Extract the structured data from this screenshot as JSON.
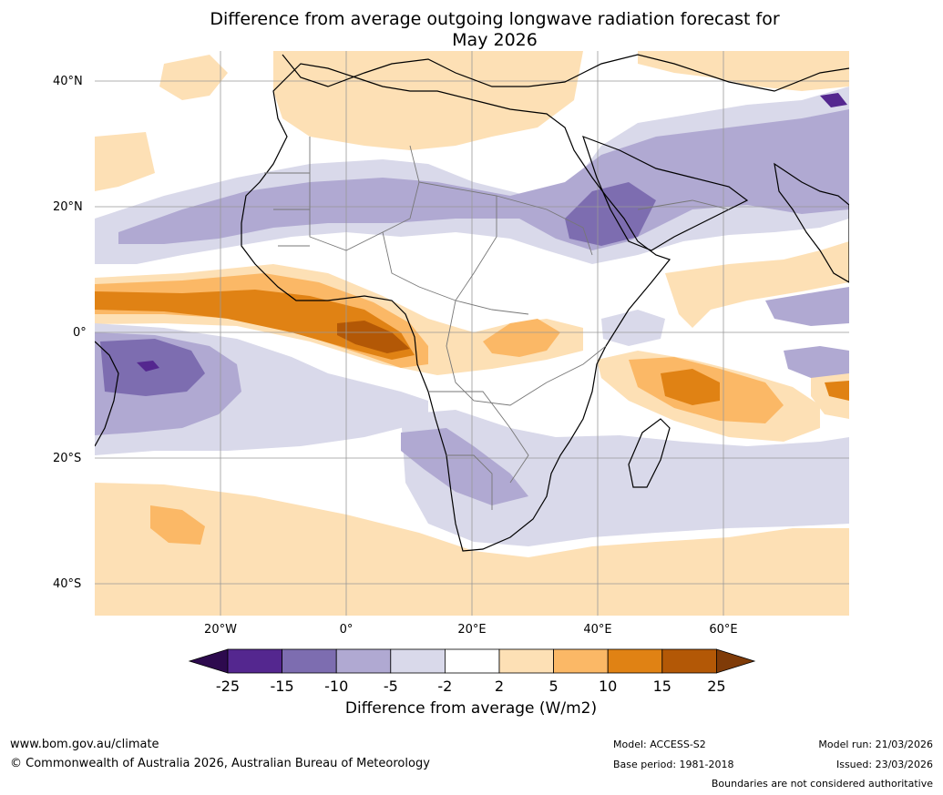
{
  "title_line1": "Difference from average outgoing longwave radiation forecast for",
  "title_line2": "May 2026",
  "lat_labels": [
    "40°N",
    "20°N",
    "0°",
    "20°S",
    "40°S"
  ],
  "lon_labels": [
    "20°W",
    "0°",
    "20°E",
    "40°E",
    "60°E"
  ],
  "legend": {
    "title": "Difference from average (W/m2)",
    "ticks": [
      "-25",
      "-15",
      "-10",
      "-5",
      "-2",
      "2",
      "5",
      "10",
      "15",
      "25"
    ],
    "colors": [
      "#2d0a4e",
      "#54278f",
      "#7d6db0",
      "#b0a9d2",
      "#d9d9ea",
      "#ffffff",
      "#fde0b5",
      "#fbb866",
      "#e08214",
      "#b35806",
      "#7f3b08"
    ]
  },
  "footer": {
    "website": "www.bom.gov.au/climate",
    "copyright": "© Commonwealth of Australia 2026, Australian Bureau of Meteorology",
    "model": "Model: ACCESS-S2",
    "base_period": "Base period: 1981-2018",
    "model_run": "Model run: 21/03/2026",
    "issued": "Issued: 23/03/2026",
    "disclaimer": "Boundaries are not considered authoritative"
  }
}
